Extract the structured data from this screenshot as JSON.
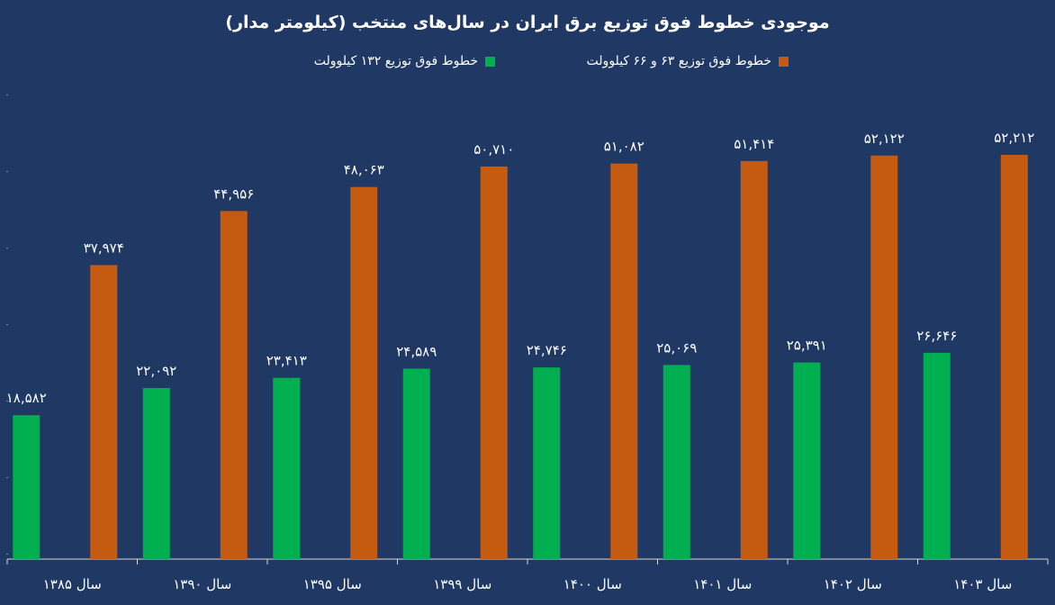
{
  "chart_data": {
    "type": "bar",
    "title": "موجودی خطوط فوق توزیع برق ایران در سال‌های منتخب (کیلومتر مدار)",
    "xlabel": "",
    "ylabel": "",
    "ylim": [
      0,
      60000
    ],
    "grid": false,
    "legend_position": "top",
    "categories": [
      "سال ۱۳۸۵",
      "سال ۱۳۹۰",
      "سال ۱۳۹۵",
      "سال ۱۳۹۹",
      "سال ۱۴۰۰",
      "سال ۱۴۰۱",
      "سال ۱۴۰۲",
      "سال ۱۴۰۳"
    ],
    "series": [
      {
        "name": "خطوط فوق توزیع ۱۳۲ کیلوولت",
        "color": "#00b050",
        "values": [
          18582,
          22092,
          23413,
          24589,
          24746,
          25069,
          25391,
          26646
        ],
        "labels": [
          "۱۸,۵۸۲",
          "۲۲,۰۹۲",
          "۲۳,۴۱۳",
          "۲۴,۵۸۹",
          "۲۴,۷۴۶",
          "۲۵,۰۶۹",
          "۲۵,۳۹۱",
          "۲۶,۶۴۶"
        ]
      },
      {
        "name": "خطوط فوق توزیع ۶۳ و ۶۶ کیلوولت",
        "color": "#c55a11",
        "values": [
          37974,
          44956,
          48063,
          50710,
          51082,
          51414,
          52122,
          52212
        ],
        "labels": [
          "۳۷,۹۷۴",
          "۴۴,۹۵۶",
          "۴۸,۰۶۳",
          "۵۰,۷۱۰",
          "۵۱,۰۸۲",
          "۵۱,۴۱۴",
          "۵۲,۱۲۲",
          "۵۲,۲۱۲"
        ]
      }
    ]
  }
}
